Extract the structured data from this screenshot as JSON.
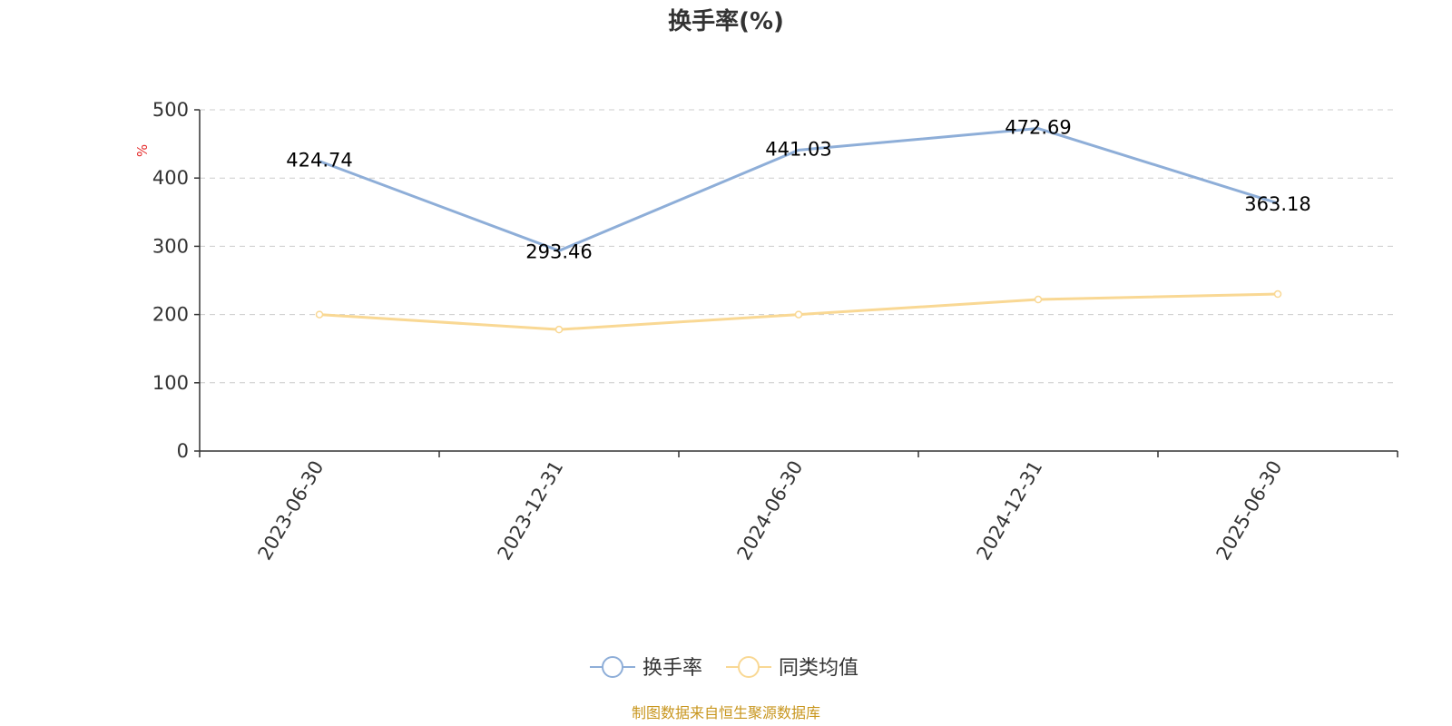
{
  "chart_data": {
    "type": "line",
    "title": "换手率(%)",
    "ylabel": "%",
    "xlabel": "",
    "ylim": [
      0,
      500
    ],
    "y_ticks": [
      0,
      100,
      200,
      300,
      400,
      500
    ],
    "grid": true,
    "legend_position": "bottom",
    "categories": [
      "2023-06-30",
      "2023-12-31",
      "2024-06-30",
      "2024-12-31",
      "2025-06-30"
    ],
    "series": [
      {
        "name": "换手率",
        "color": "#8eaed8",
        "values": [
          424.74,
          293.46,
          441.03,
          472.69,
          363.18
        ],
        "data_labels": [
          "424.74",
          "293.46",
          "441.03",
          "472.69",
          "363.18"
        ]
      },
      {
        "name": "同类均值",
        "color": "#f9d894",
        "values": [
          200,
          178,
          200,
          222,
          230
        ]
      }
    ]
  },
  "footer": {
    "source": "制图数据来自恒生聚源数据库"
  }
}
